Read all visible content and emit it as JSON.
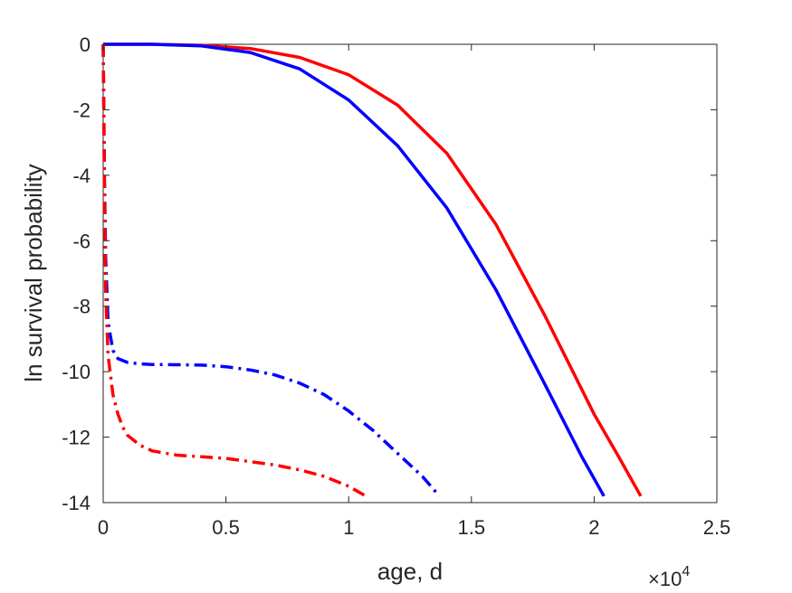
{
  "chart_data": {
    "type": "line",
    "title": "",
    "xlabel": "age, d",
    "ylabel": "ln survival probability",
    "x_multiplier": {
      "base": "×10",
      "exponent": "4"
    },
    "xlim": [
      0,
      25000
    ],
    "ylim": [
      -14,
      0
    ],
    "x_ticks": [
      0,
      5000,
      10000,
      15000,
      20000,
      25000
    ],
    "x_tick_labels": [
      "0",
      "0.5",
      "1",
      "1.5",
      "2",
      "2.5"
    ],
    "y_ticks": [
      0,
      -2,
      -4,
      -6,
      -8,
      -10,
      -12,
      -14
    ],
    "y_tick_labels": [
      "0",
      "-2",
      "-4",
      "-6",
      "-8",
      "-10",
      "-12",
      "-14"
    ],
    "grid": false,
    "series": [
      {
        "color": "#ff0000",
        "style": "solid",
        "x": [
          0,
          2000,
          4000,
          6000,
          8000,
          10000,
          12000,
          14000,
          16000,
          18000,
          20000,
          21000,
          21900
        ],
        "y": [
          0,
          0,
          -0.03,
          -0.13,
          -0.4,
          -0.93,
          -1.86,
          -3.33,
          -5.5,
          -8.3,
          -11.3,
          -12.6,
          -13.8
        ]
      },
      {
        "color": "#0000ff",
        "style": "solid",
        "x": [
          0,
          2000,
          4000,
          6000,
          8000,
          10000,
          12000,
          14000,
          16000,
          18000,
          19500,
          20400
        ],
        "y": [
          0,
          0,
          -0.05,
          -0.25,
          -0.75,
          -1.7,
          -3.1,
          -5.0,
          -7.5,
          -10.4,
          -12.6,
          -13.8
        ]
      },
      {
        "color": "#0000ff",
        "style": "dashdot",
        "x": [
          0,
          20,
          50,
          100,
          200,
          400,
          600,
          1000,
          1500,
          2000,
          3000,
          4000,
          5000,
          6000,
          7000,
          8000,
          9000,
          10000,
          11000,
          12000,
          13000,
          13700
        ],
        "y": [
          0,
          -1.5,
          -4.0,
          -6.5,
          -8.5,
          -9.35,
          -9.6,
          -9.72,
          -9.76,
          -9.78,
          -9.79,
          -9.8,
          -9.85,
          -9.95,
          -10.1,
          -10.35,
          -10.7,
          -11.2,
          -11.8,
          -12.5,
          -13.2,
          -13.8
        ]
      },
      {
        "color": "#ff0000",
        "style": "dashdot",
        "x": [
          0,
          20,
          50,
          100,
          200,
          400,
          600,
          800,
          1000,
          1500,
          2000,
          3000,
          4000,
          5000,
          6000,
          7000,
          8000,
          9000,
          10000,
          10700
        ],
        "y": [
          0,
          -1.5,
          -4.5,
          -7.5,
          -9.5,
          -10.7,
          -11.3,
          -11.7,
          -11.95,
          -12.25,
          -12.42,
          -12.55,
          -12.6,
          -12.65,
          -12.75,
          -12.85,
          -13.0,
          -13.2,
          -13.5,
          -13.8
        ]
      }
    ]
  }
}
